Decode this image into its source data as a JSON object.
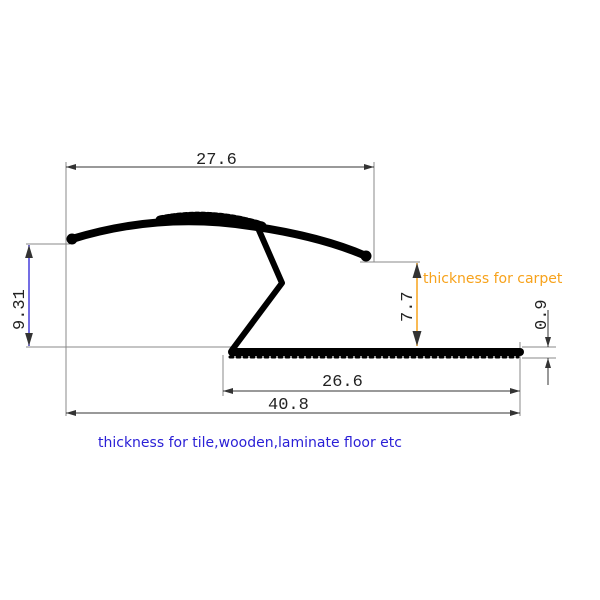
{
  "dimensions": {
    "top_width": "27.6",
    "left_height": "9.31",
    "carpet_height": "7.7",
    "base_thickness": "0.9",
    "base_width": "26.6",
    "overall_width": "40.8"
  },
  "notes": {
    "carpet": "thickness for carpet",
    "tile": "thickness for tile,wooden,laminate floor etc"
  },
  "colors": {
    "profile": "#000000",
    "dimension_line": "#808080",
    "carpet_accent": "#f7a21b",
    "tile_accent": "#2a1fd6"
  }
}
